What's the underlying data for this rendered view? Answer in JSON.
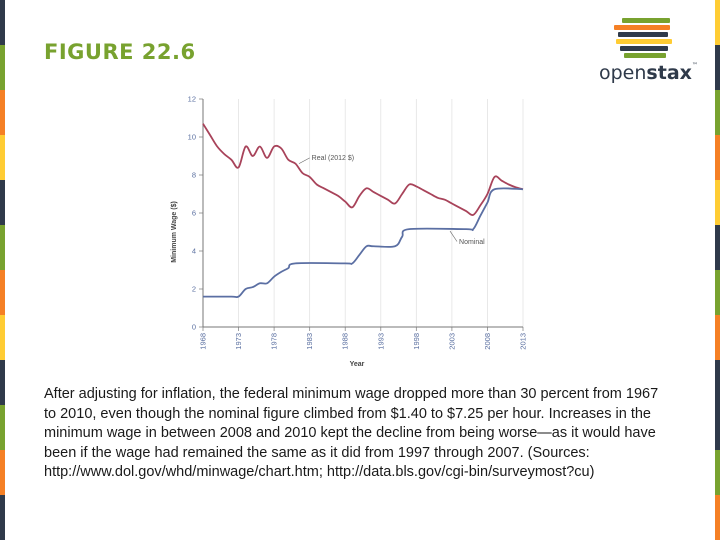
{
  "figure_title": "FIGURE 22.6",
  "logo": {
    "word_light": "open",
    "word_bold": "stax",
    "trademark": "™",
    "stripe_colors": [
      "#78a22f",
      "#f58025",
      "#2f3a4a",
      "#ffcc33",
      "#2f3a4a",
      "#78a22f"
    ]
  },
  "edge_colors": [
    "#2f3a4a",
    "#78a22f",
    "#f58025",
    "#ffcc33",
    "#2f3a4a",
    "#78a22f",
    "#f58025",
    "#ffcc33",
    "#2f3a4a",
    "#78a22f",
    "#f58025",
    "#2f3a4a"
  ],
  "caption": "After adjusting for inflation, the federal minimum wage dropped more than 30 percent from 1967 to 2010, even though the nominal figure climbed from $1.40 to $7.25 per hour. Increases in the minimum wage in between 2008 and 2010 kept the decline from being worse—as it would have been if the wage had remained the same as it did from 1997 through 2007. (Sources: http://www.dol.gov/whd/minwage/chart.htm; http://data.bls.gov/cgi-bin/surveymost?cu)",
  "chart_data": {
    "type": "line",
    "xlabel": "Year",
    "ylabel": "Minimum Wage ($)",
    "xlim": [
      1968,
      2013
    ],
    "ylim": [
      0,
      12
    ],
    "x_ticks": [
      1968,
      1973,
      1978,
      1983,
      1988,
      1993,
      1998,
      2003,
      2008,
      2013
    ],
    "y_ticks": [
      0,
      2,
      4,
      6,
      8,
      10,
      12
    ],
    "grid": "vertical",
    "series": [
      {
        "name": "Real (2012 $)",
        "color": "#a8435a",
        "points": [
          [
            1968,
            10.7
          ],
          [
            1969,
            10.1
          ],
          [
            1970,
            9.5
          ],
          [
            1971,
            9.1
          ],
          [
            1972,
            8.8
          ],
          [
            1973,
            8.4
          ],
          [
            1974,
            9.5
          ],
          [
            1975,
            9.0
          ],
          [
            1976,
            9.5
          ],
          [
            1977,
            8.9
          ],
          [
            1978,
            9.5
          ],
          [
            1979,
            9.4
          ],
          [
            1980,
            8.8
          ],
          [
            1981,
            8.6
          ],
          [
            1982,
            8.1
          ],
          [
            1983,
            7.9
          ],
          [
            1984,
            7.5
          ],
          [
            1985,
            7.3
          ],
          [
            1986,
            7.1
          ],
          [
            1987,
            6.9
          ],
          [
            1988,
            6.6
          ],
          [
            1989,
            6.3
          ],
          [
            1990,
            6.9
          ],
          [
            1991,
            7.3
          ],
          [
            1992,
            7.1
          ],
          [
            1993,
            6.9
          ],
          [
            1994,
            6.7
          ],
          [
            1995,
            6.5
          ],
          [
            1996,
            7.0
          ],
          [
            1997,
            7.5
          ],
          [
            1998,
            7.4
          ],
          [
            1999,
            7.2
          ],
          [
            2000,
            7.0
          ],
          [
            2001,
            6.8
          ],
          [
            2002,
            6.7
          ],
          [
            2003,
            6.5
          ],
          [
            2004,
            6.3
          ],
          [
            2005,
            6.1
          ],
          [
            2006,
            5.9
          ],
          [
            2007,
            6.4
          ],
          [
            2008,
            7.0
          ],
          [
            2009,
            7.9
          ],
          [
            2010,
            7.7
          ],
          [
            2011,
            7.5
          ],
          [
            2012,
            7.35
          ],
          [
            2013,
            7.25
          ]
        ]
      },
      {
        "name": "Nominal",
        "color": "#5b6fa3",
        "points": [
          [
            1968,
            1.6
          ],
          [
            1972,
            1.6
          ],
          [
            1973,
            1.6
          ],
          [
            1974,
            2.0
          ],
          [
            1975,
            2.1
          ],
          [
            1976,
            2.3
          ],
          [
            1977,
            2.3
          ],
          [
            1978,
            2.65
          ],
          [
            1979,
            2.9
          ],
          [
            1980,
            3.1
          ],
          [
            1981,
            3.35
          ],
          [
            1988,
            3.35
          ],
          [
            1989,
            3.35
          ],
          [
            1990,
            3.8
          ],
          [
            1991,
            4.25
          ],
          [
            1992,
            4.25
          ],
          [
            1995,
            4.25
          ],
          [
            1996,
            4.75
          ],
          [
            1997,
            5.15
          ],
          [
            2005,
            5.15
          ],
          [
            2006,
            5.15
          ],
          [
            2007,
            5.85
          ],
          [
            2008,
            6.55
          ],
          [
            2009,
            7.25
          ],
          [
            2013,
            7.25
          ]
        ]
      }
    ],
    "annotations": [
      {
        "text": "Real (2012 $)",
        "series": 0,
        "at_x": 1983,
        "anchor_x": 1981.5,
        "anchor_y": 8.6
      },
      {
        "text": "Nominal",
        "series": 1,
        "at_x": 2003.3,
        "anchor_x": 2003.5,
        "anchor_y": 4.4
      }
    ]
  }
}
